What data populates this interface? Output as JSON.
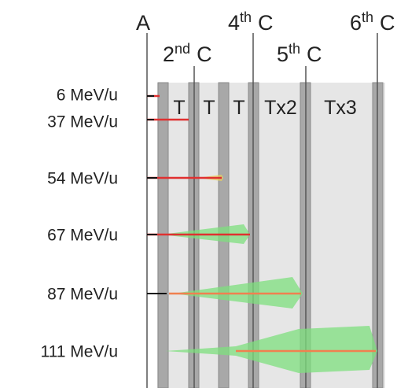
{
  "top_labels": [
    {
      "num": "A"
    },
    {
      "num": "2",
      "sup": "nd",
      "letter": "C"
    },
    {
      "num": "4",
      "sup": "th",
      "letter": "C"
    },
    {
      "num": "5",
      "sup": "th",
      "letter": "C"
    },
    {
      "num": "6",
      "sup": "th",
      "letter": "C"
    }
  ],
  "sections": [
    "T",
    "T",
    "T",
    "Tx2",
    "Tx3"
  ],
  "energies": [
    "6 MeV/u",
    "37 MeV/u",
    "54 MeV/u",
    "67 MeV/u",
    "87 MeV/u",
    "111 MeV/u"
  ]
}
